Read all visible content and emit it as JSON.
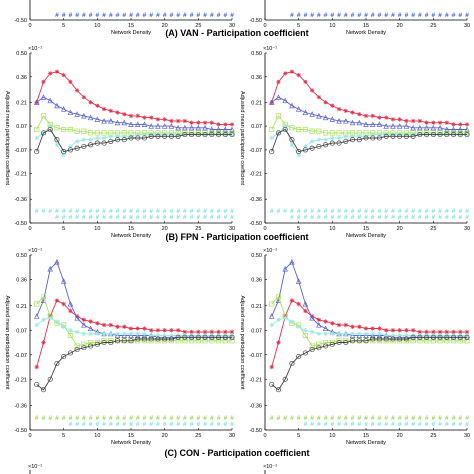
{
  "titles": {
    "A": "(A) VAN - Participation coefficient",
    "B": "(B) FPN - Participation coefficient",
    "C": "(C) CON - Participation coefficient"
  },
  "x_axis_label": "Network Density",
  "y_axis_label": "Adjusted mean participation coefficient",
  "y_exponent_label": "×10⁻¹",
  "sig_glyph": "#",
  "colors": {
    "red": "#e0304a",
    "blue": "#5a62c8",
    "green": "#a8e060",
    "cyan": "#9ee8e0",
    "black": "#404040",
    "sig_blue": "#3a5ad8",
    "sig_cyan": "#7fe0d8",
    "sig_green": "#9ad45a"
  },
  "chart_data": [
    {
      "panel": "A-partial",
      "type": "line",
      "note": "Bottom portion of VAN panels (top cropped)",
      "x": [
        0,
        30
      ],
      "ylim": [
        -0.5,
        0.5
      ],
      "significance": [
        {
          "color_key": "sig_blue",
          "x_start": 4,
          "x_end": 30
        }
      ],
      "xticks": [
        0,
        5,
        10,
        15,
        20,
        25,
        30
      ],
      "xlabel": "Network Density"
    },
    {
      "panel": "B",
      "type": "line",
      "xlabel": "Network Density",
      "ylabel": "Adjusted mean participation coefficient",
      "xlim": [
        0,
        30
      ],
      "ylim": [
        -0.5,
        0.5
      ],
      "xticks": [
        0,
        5,
        10,
        15,
        20,
        25,
        30
      ],
      "yticks": [
        -0.5,
        -0.36,
        -0.21,
        -0.07,
        0.07,
        0.21,
        0.36,
        0.5
      ],
      "ytick_labels": [
        "-0.50",
        "-0.36",
        "-0.21",
        "-0.07",
        "0.07",
        "0.21",
        "0.36",
        "0.50"
      ],
      "x": [
        1,
        2,
        3,
        4,
        5,
        6,
        7,
        8,
        9,
        10,
        11,
        12,
        13,
        14,
        15,
        16,
        17,
        18,
        19,
        20,
        21,
        22,
        23,
        24,
        25,
        26,
        27,
        28,
        29,
        30
      ],
      "series": [
        {
          "color_key": "red",
          "marker": "star",
          "values": [
            0.21,
            0.33,
            0.38,
            0.39,
            0.37,
            0.33,
            0.28,
            0.24,
            0.21,
            0.19,
            0.17,
            0.16,
            0.15,
            0.14,
            0.13,
            0.13,
            0.12,
            0.12,
            0.11,
            0.11,
            0.1,
            0.1,
            0.1,
            0.09,
            0.09,
            0.09,
            0.09,
            0.08,
            0.08,
            0.08
          ]
        },
        {
          "color_key": "blue",
          "marker": "triangle",
          "values": [
            0.21,
            0.24,
            0.22,
            0.19,
            0.17,
            0.15,
            0.14,
            0.13,
            0.12,
            0.11,
            0.1,
            0.1,
            0.09,
            0.09,
            0.08,
            0.08,
            0.08,
            0.07,
            0.07,
            0.07,
            0.07,
            0.06,
            0.06,
            0.06,
            0.06,
            0.06,
            0.05,
            0.05,
            0.05,
            0.05
          ]
        },
        {
          "color_key": "green",
          "marker": "square",
          "values": [
            0.05,
            0.13,
            0.08,
            0.06,
            0.05,
            0.05,
            0.04,
            0.04,
            0.03,
            0.03,
            0.03,
            0.03,
            0.03,
            0.03,
            0.03,
            0.03,
            0.03,
            0.03,
            0.03,
            0.03,
            0.03,
            0.03,
            0.03,
            0.03,
            0.03,
            0.03,
            0.03,
            0.03,
            0.03,
            0.03
          ]
        },
        {
          "color_key": "cyan",
          "marker": "star",
          "values": [
            0.0,
            0.03,
            0.07,
            -0.04,
            -0.1,
            -0.05,
            -0.02,
            -0.01,
            -0.01,
            0.0,
            0.0,
            0.01,
            0.01,
            0.01,
            0.01,
            0.02,
            0.02,
            0.02,
            0.02,
            0.02,
            0.02,
            0.02,
            0.02,
            0.02,
            0.02,
            0.02,
            0.02,
            0.02,
            0.02,
            0.02
          ]
        },
        {
          "color_key": "black",
          "marker": "circle",
          "values": [
            -0.08,
            0.03,
            0.05,
            -0.01,
            -0.08,
            -0.07,
            -0.06,
            -0.05,
            -0.04,
            -0.03,
            -0.03,
            -0.02,
            -0.01,
            -0.01,
            0.0,
            0.0,
            0.0,
            0.01,
            0.01,
            0.01,
            0.01,
            0.01,
            0.02,
            0.02,
            0.02,
            0.02,
            0.02,
            0.02,
            0.02,
            0.02
          ]
        }
      ],
      "significance": [
        {
          "color_key": "sig_cyan",
          "x_start": 1,
          "x_end": 30,
          "row": 0
        },
        {
          "color_key": "sig_cyan",
          "x_start": 4,
          "x_end": 30,
          "row": 1
        }
      ]
    },
    {
      "panel": "C",
      "type": "line",
      "xlabel": "Network Density",
      "ylabel": "Adjusted mean participation coefficient",
      "xlim": [
        0,
        30
      ],
      "ylim": [
        -0.5,
        0.5
      ],
      "xticks": [
        0,
        5,
        10,
        15,
        20,
        25,
        30
      ],
      "yticks": [
        -0.5,
        -0.36,
        -0.21,
        -0.07,
        0.07,
        0.21,
        0.36,
        0.5
      ],
      "ytick_labels": [
        "-0.50",
        "-0.36",
        "-0.21",
        "-0.07",
        "0.07",
        "0.21",
        "0.36",
        "0.50"
      ],
      "x": [
        1,
        2,
        3,
        4,
        5,
        6,
        7,
        8,
        9,
        10,
        11,
        12,
        13,
        14,
        15,
        16,
        17,
        18,
        19,
        20,
        21,
        22,
        23,
        24,
        25,
        26,
        27,
        28,
        29,
        30
      ],
      "series": [
        {
          "color_key": "red",
          "marker": "star",
          "values": [
            -0.14,
            0.0,
            0.15,
            0.24,
            0.22,
            0.18,
            0.15,
            0.13,
            0.12,
            0.11,
            0.1,
            0.1,
            0.09,
            0.09,
            0.08,
            0.08,
            0.08,
            0.07,
            0.07,
            0.07,
            0.07,
            0.07,
            0.06,
            0.06,
            0.06,
            0.06,
            0.06,
            0.06,
            0.06,
            0.06
          ]
        },
        {
          "color_key": "blue",
          "marker": "triangle",
          "values": [
            0.15,
            0.24,
            0.42,
            0.46,
            0.35,
            0.22,
            0.14,
            0.1,
            0.08,
            0.06,
            0.05,
            0.05,
            0.04,
            0.04,
            0.04,
            0.04,
            0.04,
            0.04,
            0.03,
            0.03,
            0.03,
            0.03,
            0.03,
            0.03,
            0.03,
            0.03,
            0.03,
            0.03,
            0.03,
            0.03
          ]
        },
        {
          "color_key": "green",
          "marker": "square",
          "values": [
            0.22,
            0.26,
            0.15,
            0.11,
            0.1,
            0.04,
            -0.02,
            -0.01,
            0.0,
            0.0,
            0.01,
            0.01,
            0.01,
            0.01,
            0.01,
            0.01,
            0.01,
            0.01,
            0.01,
            0.01,
            0.01,
            0.01,
            0.01,
            0.01,
            0.01,
            0.01,
            0.01,
            0.01,
            0.01,
            0.01
          ]
        },
        {
          "color_key": "cyan",
          "marker": "star",
          "values": [
            0.1,
            0.13,
            0.14,
            0.12,
            0.09,
            0.07,
            0.06,
            0.05,
            0.05,
            0.05,
            0.05,
            0.05,
            0.05,
            0.05,
            0.05,
            0.05,
            0.05,
            0.04,
            0.04,
            0.04,
            0.04,
            0.04,
            0.04,
            0.04,
            0.04,
            0.04,
            0.04,
            0.04,
            0.04,
            0.04
          ]
        },
        {
          "color_key": "black",
          "marker": "circle",
          "values": [
            -0.24,
            -0.27,
            -0.21,
            -0.12,
            -0.08,
            -0.06,
            -0.04,
            -0.03,
            -0.02,
            -0.01,
            0.0,
            0.0,
            0.01,
            0.01,
            0.01,
            0.02,
            0.02,
            0.02,
            0.02,
            0.02,
            0.02,
            0.03,
            0.03,
            0.03,
            0.03,
            0.03,
            0.03,
            0.03,
            0.03,
            0.03
          ]
        }
      ],
      "significance": [
        {
          "color_key": "sig_green",
          "x_start": 1,
          "x_end": 30,
          "row": 0
        },
        {
          "color_key": "sig_cyan",
          "x_start": 6,
          "x_end": 30,
          "row": 1
        }
      ]
    }
  ]
}
